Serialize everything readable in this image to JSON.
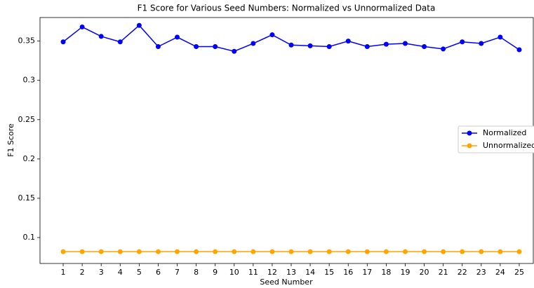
{
  "chart_data": {
    "type": "line",
    "title": "F1 Score for Various Seed Numbers: Normalized vs Unnormalized Data",
    "xlabel": "Seed Number",
    "ylabel": "F1 Score",
    "x": [
      1,
      2,
      3,
      4,
      5,
      6,
      7,
      8,
      9,
      10,
      11,
      12,
      13,
      14,
      15,
      16,
      17,
      18,
      19,
      20,
      21,
      22,
      23,
      24,
      25
    ],
    "series": [
      {
        "name": "Normalized",
        "color": "#0000ff",
        "values": [
          0.349,
          0.368,
          0.356,
          0.349,
          0.37,
          0.343,
          0.355,
          0.343,
          0.343,
          0.337,
          0.347,
          0.358,
          0.345,
          0.344,
          0.343,
          0.35,
          0.343,
          0.346,
          0.347,
          0.343,
          0.34,
          0.349,
          0.347,
          0.355,
          0.339
        ]
      },
      {
        "name": "Unnormalized",
        "color": "#ffa500",
        "values": [
          0.082,
          0.082,
          0.082,
          0.082,
          0.082,
          0.082,
          0.082,
          0.082,
          0.082,
          0.082,
          0.082,
          0.082,
          0.082,
          0.082,
          0.082,
          0.082,
          0.082,
          0.082,
          0.082,
          0.082,
          0.082,
          0.082,
          0.082,
          0.082,
          0.082
        ]
      }
    ],
    "xlim": [
      -0.22,
      25.74
    ],
    "xticks": [
      1,
      2,
      3,
      4,
      5,
      6,
      7,
      8,
      9,
      10,
      11,
      12,
      13,
      14,
      15,
      16,
      17,
      18,
      19,
      20,
      21,
      22,
      23,
      24,
      25
    ],
    "ylim": [
      0.067,
      0.38
    ],
    "yticks": [
      0.1,
      0.15,
      0.2,
      0.25,
      0.3,
      0.35
    ],
    "legend": "center right",
    "grid": false
  }
}
